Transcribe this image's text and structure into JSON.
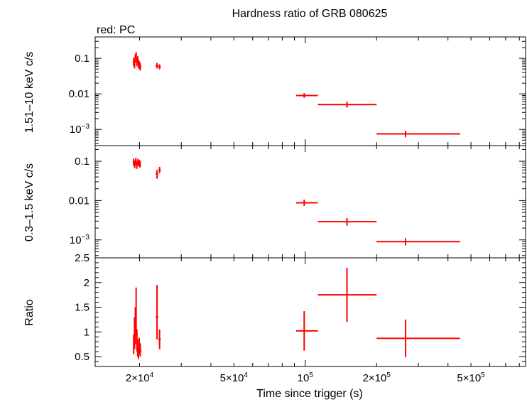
{
  "chart_data": {
    "type": "scatter",
    "title": "Hardness ratio of GRB 080625",
    "note": "red: PC",
    "xlabel": "Time since trigger (s)",
    "xscale": "log",
    "xlim": [
      13000,
      850000
    ],
    "x_ticks": [
      {
        "value": 20000,
        "mant": "2×10",
        "exp": "4"
      },
      {
        "value": 50000,
        "mant": "5×10",
        "exp": "4"
      },
      {
        "value": 100000,
        "mant": "10",
        "exp": "5"
      },
      {
        "value": 200000,
        "mant": "2×10",
        "exp": "5"
      },
      {
        "value": 500000,
        "mant": "5×10",
        "exp": "5"
      }
    ],
    "colors": {
      "data": "#ff0000",
      "axes": "#000000"
    },
    "panels": [
      {
        "ylabel": "1.51–10 keV c/s",
        "yscale": "log",
        "ylim": [
          0.00035,
          0.4
        ],
        "y_ticks": [
          {
            "value": 0.1,
            "text": "0.1"
          },
          {
            "value": 0.01,
            "text": "0.01"
          },
          {
            "value": 0.001,
            "mant": "10",
            "exp": "−3"
          }
        ],
        "series": [
          {
            "points": [
              {
                "x": 18900,
                "xerr": 180,
                "y": 0.082,
                "yerr_lo": 0.022,
                "yerr_hi": 0.022
              },
              {
                "x": 19050,
                "xerr": 150,
                "y": 0.07,
                "yerr_lo": 0.018,
                "yerr_hi": 0.02
              },
              {
                "x": 19200,
                "xerr": 150,
                "y": 0.1,
                "yerr_lo": 0.025,
                "yerr_hi": 0.03
              },
              {
                "x": 19350,
                "xerr": 150,
                "y": 0.12,
                "yerr_lo": 0.03,
                "yerr_hi": 0.03
              },
              {
                "x": 19500,
                "xerr": 150,
                "y": 0.08,
                "yerr_lo": 0.02,
                "yerr_hi": 0.025
              },
              {
                "x": 19650,
                "xerr": 150,
                "y": 0.09,
                "yerr_lo": 0.022,
                "yerr_hi": 0.025
              },
              {
                "x": 19800,
                "xerr": 150,
                "y": 0.07,
                "yerr_lo": 0.017,
                "yerr_hi": 0.02
              },
              {
                "x": 19950,
                "xerr": 150,
                "y": 0.065,
                "yerr_lo": 0.015,
                "yerr_hi": 0.018
              },
              {
                "x": 20150,
                "xerr": 200,
                "y": 0.058,
                "yerr_lo": 0.013,
                "yerr_hi": 0.015
              },
              {
                "x": 23700,
                "xerr": 300,
                "y": 0.062,
                "yerr_lo": 0.01,
                "yerr_hi": 0.012
              },
              {
                "x": 24300,
                "xerr": 300,
                "y": 0.058,
                "yerr_lo": 0.009,
                "yerr_hi": 0.01
              },
              {
                "x": 99000,
                "xerr_lo": 7500,
                "xerr_hi": 14000,
                "y": 0.009,
                "yerr_lo": 0.0013,
                "yerr_hi": 0.0015
              },
              {
                "x": 150000,
                "xerr_lo": 37000,
                "xerr_hi": 50000,
                "y": 0.005,
                "yerr_lo": 0.0009,
                "yerr_hi": 0.001
              },
              {
                "x": 265000,
                "xerr_lo": 65000,
                "xerr_hi": 185000,
                "y": 0.00075,
                "yerr_lo": 0.00015,
                "yerr_hi": 0.00017
              }
            ]
          }
        ]
      },
      {
        "ylabel": "0.3–1.5 keV c/s",
        "yscale": "log",
        "ylim": [
          0.00035,
          0.25
        ],
        "y_ticks": [
          {
            "value": 0.1,
            "text": "0.1"
          },
          {
            "value": 0.01,
            "text": "0.01"
          },
          {
            "value": 0.001,
            "mant": "10",
            "exp": "−3"
          }
        ],
        "series": [
          {
            "points": [
              {
                "x": 18900,
                "xerr": 180,
                "y": 0.095,
                "yerr_lo": 0.02,
                "yerr_hi": 0.022
              },
              {
                "x": 19100,
                "xerr": 180,
                "y": 0.085,
                "yerr_lo": 0.018,
                "yerr_hi": 0.02
              },
              {
                "x": 19300,
                "xerr": 180,
                "y": 0.1,
                "yerr_lo": 0.02,
                "yerr_hi": 0.022
              },
              {
                "x": 19500,
                "xerr": 150,
                "y": 0.08,
                "yerr_lo": 0.016,
                "yerr_hi": 0.018
              },
              {
                "x": 19700,
                "xerr": 150,
                "y": 0.095,
                "yerr_lo": 0.018,
                "yerr_hi": 0.02
              },
              {
                "x": 19900,
                "xerr": 150,
                "y": 0.09,
                "yerr_lo": 0.017,
                "yerr_hi": 0.019
              },
              {
                "x": 20100,
                "xerr": 200,
                "y": 0.085,
                "yerr_lo": 0.016,
                "yerr_hi": 0.018
              },
              {
                "x": 23700,
                "xerr": 300,
                "y": 0.048,
                "yerr_lo": 0.012,
                "yerr_hi": 0.012
              },
              {
                "x": 24300,
                "xerr": 300,
                "y": 0.06,
                "yerr_lo": 0.01,
                "yerr_hi": 0.012
              },
              {
                "x": 99000,
                "xerr_lo": 7500,
                "xerr_hi": 14000,
                "y": 0.0088,
                "yerr_lo": 0.0015,
                "yerr_hi": 0.0018
              },
              {
                "x": 150000,
                "xerr_lo": 37000,
                "xerr_hi": 50000,
                "y": 0.0029,
                "yerr_lo": 0.0006,
                "yerr_hi": 0.0007
              },
              {
                "x": 265000,
                "xerr_lo": 65000,
                "xerr_hi": 185000,
                "y": 0.0009,
                "yerr_lo": 0.00018,
                "yerr_hi": 0.0002
              }
            ]
          }
        ]
      },
      {
        "ylabel": "Ratio",
        "yscale": "linear",
        "ylim": [
          0.3,
          2.5
        ],
        "y_ticks": [
          {
            "value": 0.5,
            "text": "0.5"
          },
          {
            "value": 1,
            "text": "1"
          },
          {
            "value": 1.5,
            "text": "1.5"
          },
          {
            "value": 2,
            "text": "2"
          },
          {
            "value": 2.5,
            "text": "2.5"
          }
        ],
        "series": [
          {
            "points": [
              {
                "x": 18900,
                "xerr": 150,
                "y": 0.75,
                "yerr_lo": 0.2,
                "yerr_hi": 0.2
              },
              {
                "x": 19050,
                "xerr": 150,
                "y": 0.95,
                "yerr_lo": 0.3,
                "yerr_hi": 0.35
              },
              {
                "x": 19200,
                "xerr": 150,
                "y": 1.1,
                "yerr_lo": 0.35,
                "yerr_hi": 0.4
              },
              {
                "x": 19350,
                "xerr": 150,
                "y": 1.4,
                "yerr_lo": 0.5,
                "yerr_hi": 0.5
              },
              {
                "x": 19500,
                "xerr": 150,
                "y": 0.8,
                "yerr_lo": 0.2,
                "yerr_hi": 0.25
              },
              {
                "x": 19650,
                "xerr": 150,
                "y": 0.65,
                "yerr_lo": 0.15,
                "yerr_hi": 0.2
              },
              {
                "x": 19800,
                "xerr": 150,
                "y": 0.55,
                "yerr_lo": 0.1,
                "yerr_hi": 0.15
              },
              {
                "x": 19950,
                "xerr": 150,
                "y": 0.7,
                "yerr_lo": 0.15,
                "yerr_hi": 0.18
              },
              {
                "x": 20150,
                "xerr": 200,
                "y": 0.62,
                "yerr_lo": 0.12,
                "yerr_hi": 0.15
              },
              {
                "x": 23700,
                "xerr": 300,
                "y": 1.3,
                "yerr_lo": 0.45,
                "yerr_hi": 0.65
              },
              {
                "x": 24300,
                "xerr": 300,
                "y": 0.85,
                "yerr_lo": 0.2,
                "yerr_hi": 0.2
              },
              {
                "x": 99000,
                "xerr_lo": 7500,
                "xerr_hi": 14000,
                "y": 1.02,
                "yerr_lo": 0.4,
                "yerr_hi": 0.4
              },
              {
                "x": 150000,
                "xerr_lo": 37000,
                "xerr_hi": 50000,
                "y": 1.75,
                "yerr_lo": 0.55,
                "yerr_hi": 0.55
              },
              {
                "x": 265000,
                "xerr_lo": 65000,
                "xerr_hi": 185000,
                "y": 0.87,
                "yerr_lo": 0.38,
                "yerr_hi": 0.38
              }
            ]
          }
        ]
      }
    ]
  }
}
